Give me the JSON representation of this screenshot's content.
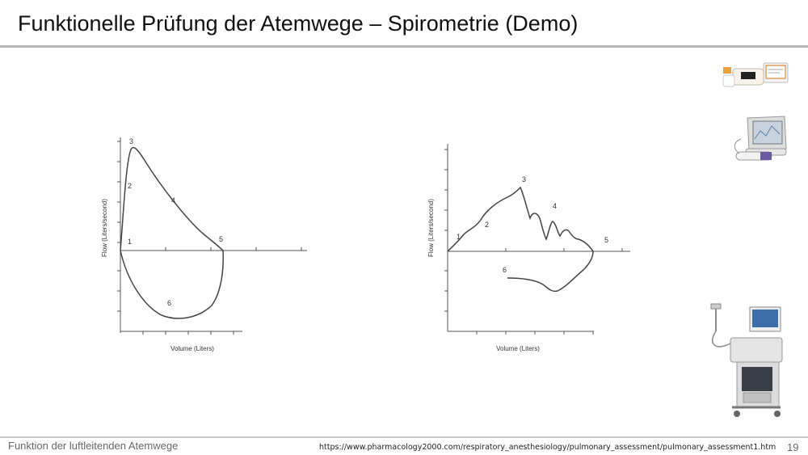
{
  "slide": {
    "title": "Funktionelle Prüfung der Atemwege – Spirometrie (Demo)",
    "footer_text": "Funktion der luftleitenden Atemwege",
    "source_url": "https://www.pharmacology2000.com/respiratory_anesthesiology/pulmonary_assessment/pulmonary_assessment1.htm",
    "page_number": "19"
  },
  "diagrams": [
    {
      "y_axis_label": "Flow (Liters/second)",
      "x_axis_label": "Volume (Liters)",
      "point_labels": [
        "1",
        "2",
        "3",
        "4",
        "5",
        "6"
      ]
    },
    {
      "y_axis_label": "Flow (Liters/second)",
      "x_axis_label": "Volume (Liters)",
      "point_labels": [
        "1",
        "2",
        "3",
        "4",
        "5",
        "6"
      ]
    }
  ],
  "devices": [
    {
      "icon": "handheld-spirometer-icon"
    },
    {
      "icon": "desktop-spirometer-icon"
    },
    {
      "icon": "spirometry-cart-icon"
    }
  ],
  "colors": {
    "text": "#111111",
    "rule": "#b8b8b8",
    "curve": "#444444"
  }
}
